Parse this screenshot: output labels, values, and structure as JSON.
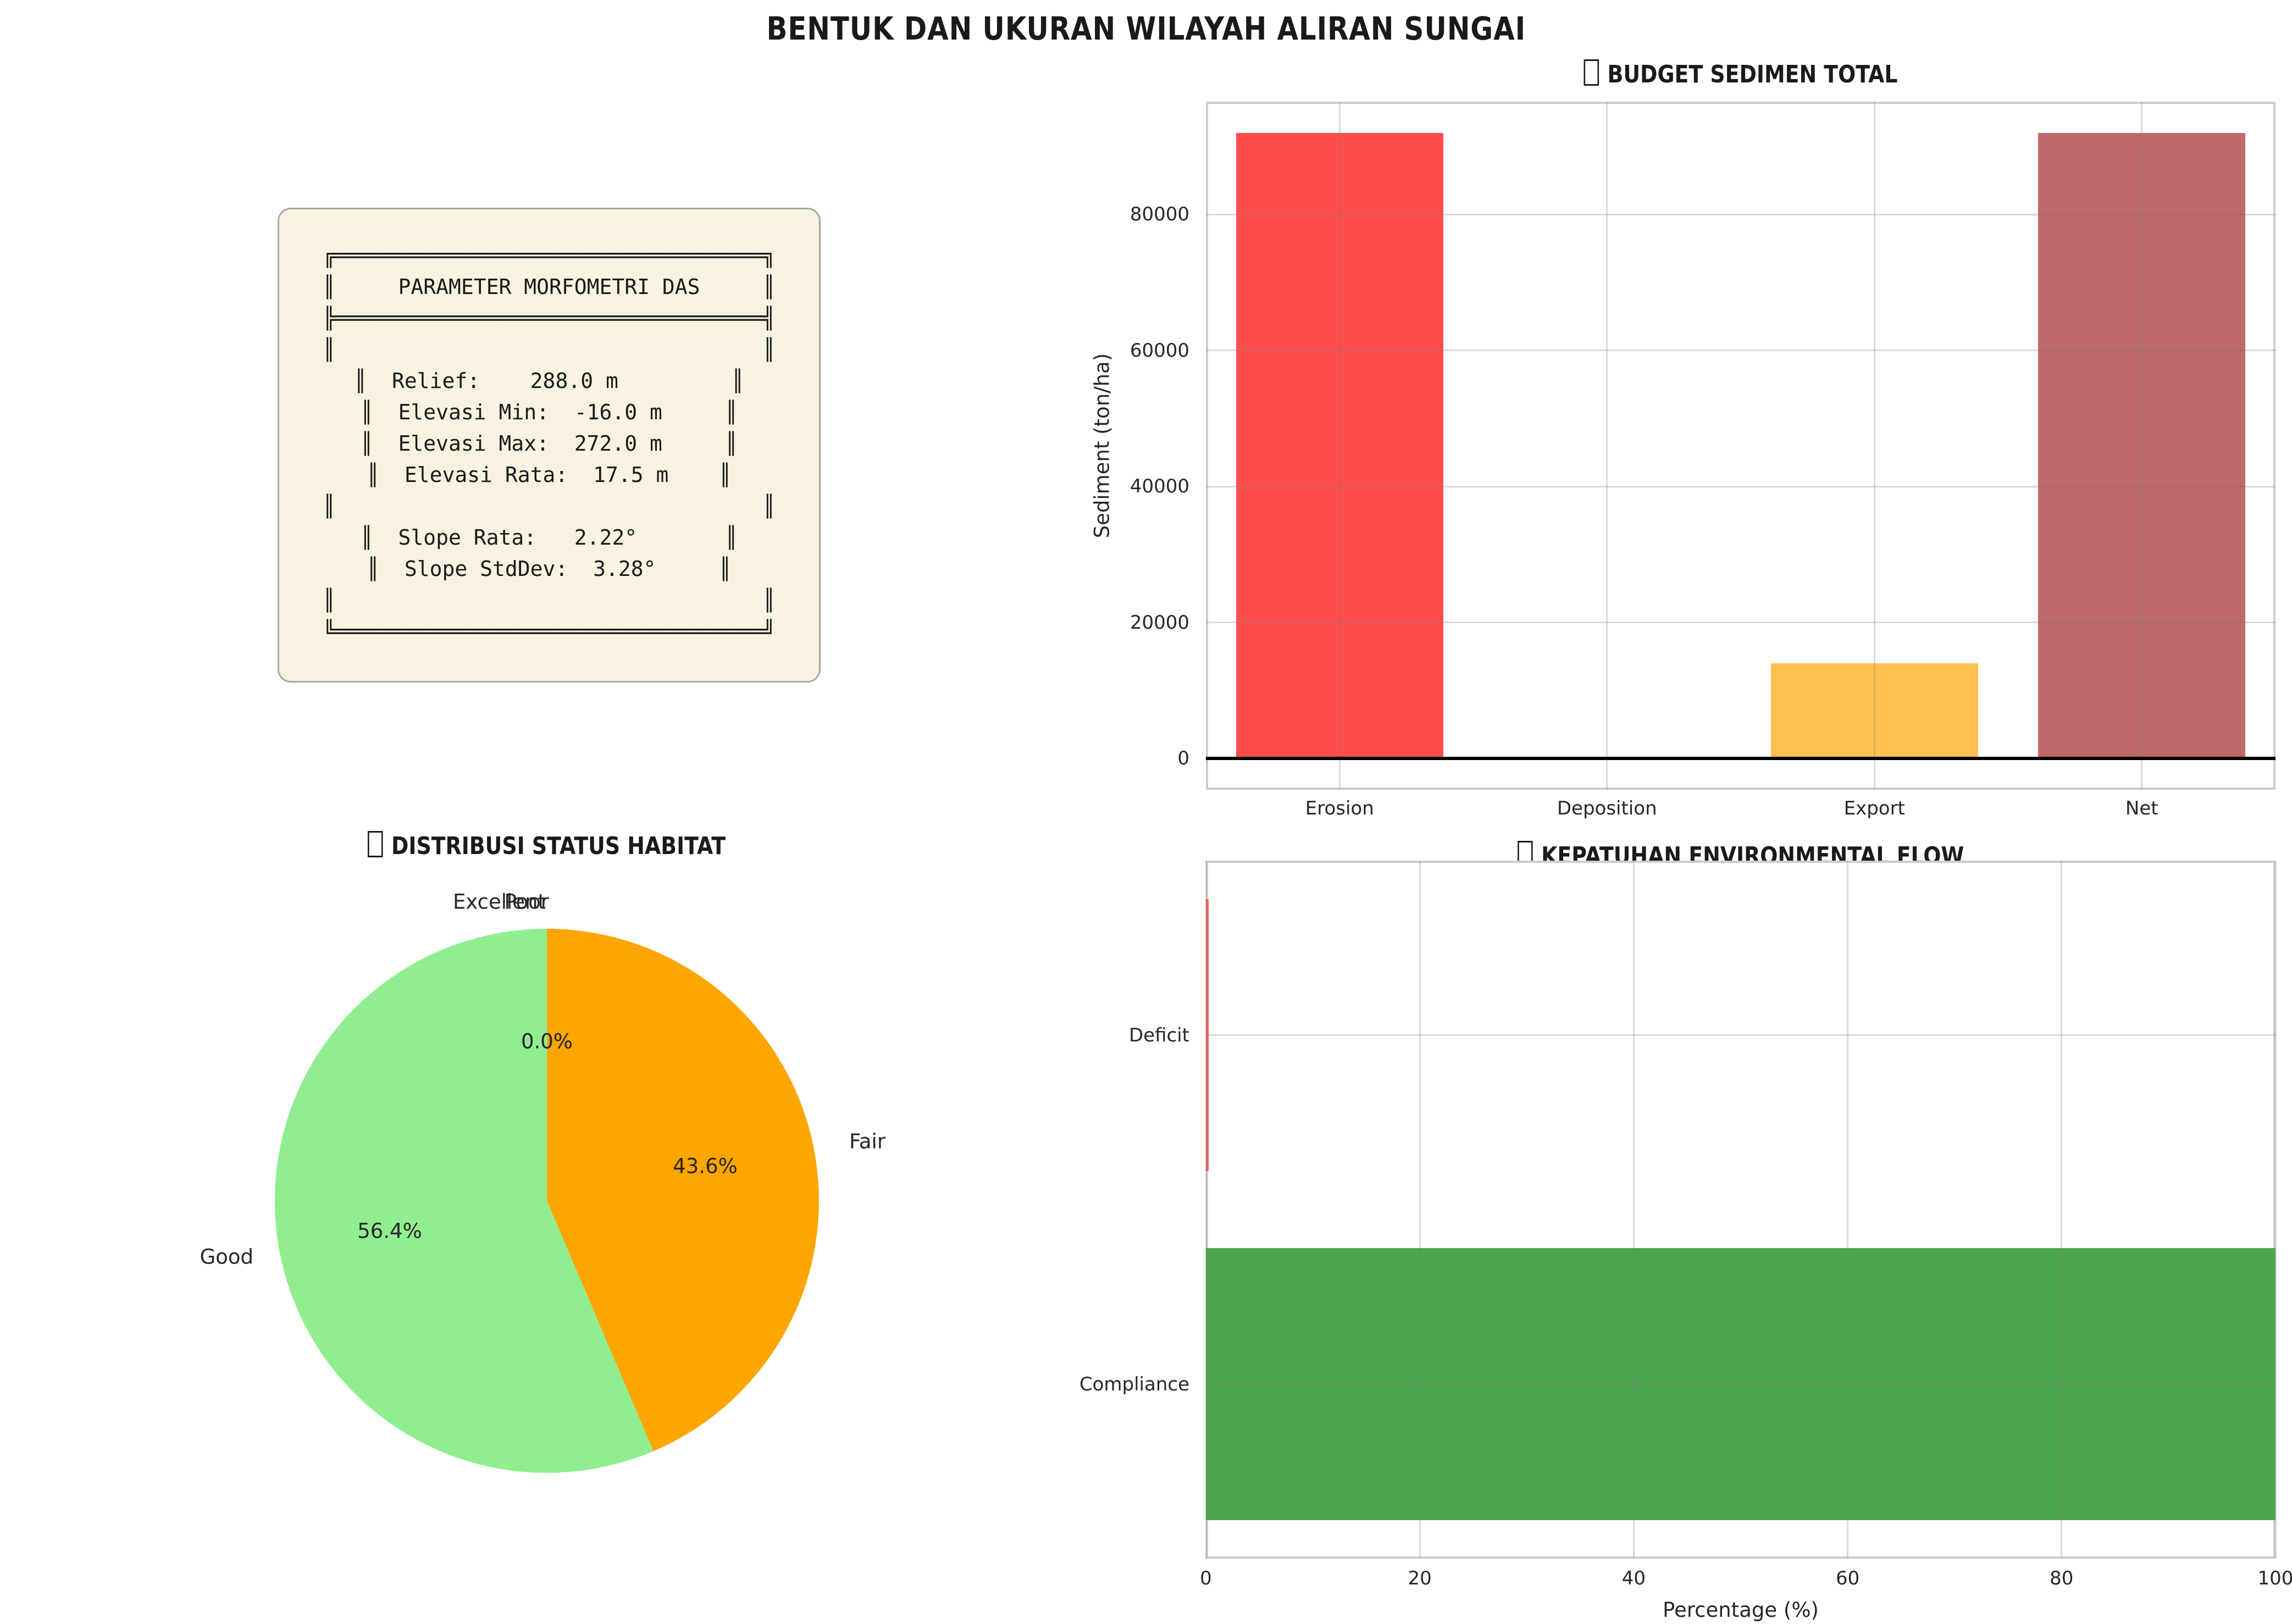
{
  "figure": {
    "title": "BENTUK DAN UKURAN WILAYAH ALIRAN SUNGAI",
    "background_color": "#FFFFFF",
    "text_color": "#262626"
  },
  "parameter_panel": {
    "background_color": "#F8F2E1",
    "border_color": "#A8A8A3",
    "box_title": "PARAMETER MORFOMETRI DAS",
    "metrics": {
      "relief": "288.0 m",
      "elevasi_min": "-16.0 m",
      "elevasi_max": "272.0 m",
      "elevasi_rata": "17.5 m",
      "slope_rata": "2.22°",
      "slope_stddev": "3.28°"
    },
    "lines": [
      "╔══════════════════════════════════╗",
      "║     PARAMETER MORFOMETRI DAS     ║",
      "╠══════════════════════════════════╣",
      "║                                  ║",
      "║  Relief:    288.0 m         ║",
      "║  Elevasi Min:  -16.0 m     ║",
      "║  Elevasi Max:  272.0 m     ║",
      "║  Elevasi Rata:  17.5 m    ║",
      "║                                  ║",
      "║  Slope Rata:   2.22°       ║",
      "║  Slope StdDev:  3.28°     ║",
      "║                                  ║",
      "╚══════════════════════════════════╝"
    ]
  },
  "chart_data": [
    {
      "id": "sediment-budget",
      "type": "bar",
      "title": "BUDGET SEDIMEN TOTAL",
      "title_icon": "missing-glyph",
      "categories": [
        "Erosion",
        "Deposition",
        "Export",
        "Net"
      ],
      "values": [
        92000,
        0,
        14000,
        92000
      ],
      "bar_colors": [
        "#FF4D4D",
        null,
        "#FDC04E",
        "#BD6A68"
      ],
      "ylabel": "Sediment (ton/ha)",
      "yticks": [
        0,
        20000,
        40000,
        60000,
        80000
      ],
      "ylim": [
        -4600,
        96600
      ],
      "grid": true,
      "zero_line_color": "#000000",
      "spine_color": "#CCCCCC"
    },
    {
      "id": "habitat-status",
      "type": "pie",
      "title": "DISTRIBUSI STATUS HABITAT",
      "title_icon": "missing-glyph",
      "labels": [
        "Excellent",
        "Poor",
        "Fair",
        "Good"
      ],
      "values_pct": [
        0.0,
        0.0,
        43.6,
        56.4
      ],
      "pct_labels": [
        "0.0%",
        "0.0%",
        "43.6%",
        "56.4%"
      ],
      "colors": [
        null,
        null,
        "#FFA500",
        "#90EE90"
      ],
      "start_angle_deg": 90,
      "direction": "clockwise"
    },
    {
      "id": "environmental-flow",
      "type": "bar-horizontal",
      "title": "KEPATUHAN ENVIRONMENTAL FLOW",
      "title_icon": "missing-glyph",
      "categories": [
        "Deficit",
        "Compliance"
      ],
      "values": [
        0.2,
        100
      ],
      "bar_colors": [
        "#F0625C",
        "#4AA64C"
      ],
      "xlabel": "Percentage (%)",
      "xticks": [
        0,
        20,
        40,
        60,
        80,
        100
      ],
      "xlim": [
        0,
        100
      ],
      "grid": true,
      "spine_color": "#CCCCCC"
    }
  ]
}
